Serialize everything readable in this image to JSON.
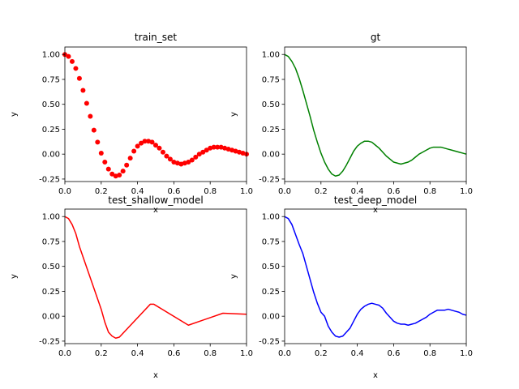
{
  "chart_data": [
    {
      "type": "scatter",
      "title": "train_set",
      "xlabel": "x",
      "ylabel": "y",
      "xlim": [
        0,
        1
      ],
      "ylim": [
        -0.275,
        1.075
      ],
      "xticks": [
        "0.0",
        "0.2",
        "0.4",
        "0.6",
        "0.8",
        "1.0"
      ],
      "yticks": [
        "-0.25",
        "0.00",
        "0.25",
        "0.50",
        "0.75",
        "1.00"
      ],
      "color": "#ff0000",
      "series": [
        {
          "x": [
            0.0,
            0.02,
            0.04,
            0.06,
            0.08,
            0.1,
            0.12,
            0.14,
            0.16,
            0.18,
            0.2,
            0.22,
            0.24,
            0.26,
            0.28,
            0.3,
            0.32,
            0.34,
            0.36,
            0.38,
            0.4,
            0.42,
            0.44,
            0.46,
            0.48,
            0.5,
            0.52,
            0.54,
            0.56,
            0.58,
            0.6,
            0.62,
            0.64,
            0.66,
            0.68,
            0.7,
            0.72,
            0.74,
            0.76,
            0.78,
            0.8,
            0.82,
            0.84,
            0.86,
            0.88,
            0.9,
            0.92,
            0.94,
            0.96,
            0.98,
            1.0
          ],
          "y": [
            1.0,
            0.98,
            0.93,
            0.86,
            0.76,
            0.64,
            0.51,
            0.38,
            0.24,
            0.12,
            0.01,
            -0.08,
            -0.15,
            -0.2,
            -0.22,
            -0.21,
            -0.17,
            -0.11,
            -0.04,
            0.03,
            0.08,
            0.11,
            0.13,
            0.13,
            0.12,
            0.09,
            0.06,
            0.02,
            -0.02,
            -0.05,
            -0.08,
            -0.09,
            -0.1,
            -0.09,
            -0.08,
            -0.06,
            -0.03,
            0.0,
            0.02,
            0.04,
            0.06,
            0.07,
            0.07,
            0.07,
            0.06,
            0.05,
            0.04,
            0.03,
            0.02,
            0.01,
            0.0
          ]
        }
      ]
    },
    {
      "type": "line",
      "title": "gt",
      "xlabel": "x",
      "ylabel": "y",
      "xlim": [
        0,
        1
      ],
      "ylim": [
        -0.275,
        1.075
      ],
      "xticks": [
        "0.0",
        "0.2",
        "0.4",
        "0.6",
        "0.8",
        "1.0"
      ],
      "yticks": [
        "-0.25",
        "0.00",
        "0.25",
        "0.50",
        "0.75",
        "1.00"
      ],
      "color": "#008000",
      "series": [
        {
          "x": [
            0.0,
            0.02,
            0.04,
            0.06,
            0.08,
            0.1,
            0.12,
            0.14,
            0.16,
            0.18,
            0.2,
            0.22,
            0.24,
            0.26,
            0.28,
            0.3,
            0.32,
            0.34,
            0.36,
            0.38,
            0.4,
            0.42,
            0.44,
            0.46,
            0.48,
            0.5,
            0.52,
            0.54,
            0.56,
            0.58,
            0.6,
            0.62,
            0.64,
            0.66,
            0.68,
            0.7,
            0.72,
            0.74,
            0.76,
            0.78,
            0.8,
            0.82,
            0.84,
            0.86,
            0.88,
            0.9,
            0.92,
            0.94,
            0.96,
            0.98,
            1.0
          ],
          "y": [
            1.0,
            0.98,
            0.93,
            0.86,
            0.76,
            0.64,
            0.51,
            0.38,
            0.24,
            0.12,
            0.01,
            -0.08,
            -0.15,
            -0.2,
            -0.22,
            -0.21,
            -0.17,
            -0.11,
            -0.04,
            0.03,
            0.08,
            0.11,
            0.13,
            0.13,
            0.12,
            0.09,
            0.06,
            0.02,
            -0.02,
            -0.05,
            -0.08,
            -0.09,
            -0.1,
            -0.09,
            -0.08,
            -0.06,
            -0.03,
            0.0,
            0.02,
            0.04,
            0.06,
            0.07,
            0.07,
            0.07,
            0.06,
            0.05,
            0.04,
            0.03,
            0.02,
            0.01,
            0.0
          ]
        }
      ]
    },
    {
      "type": "line",
      "title": "test_shallow_model",
      "xlabel": "x",
      "ylabel": "y",
      "xlim": [
        0,
        1
      ],
      "ylim": [
        -0.275,
        1.075
      ],
      "xticks": [
        "0.0",
        "0.2",
        "0.4",
        "0.6",
        "0.8",
        "1.0"
      ],
      "yticks": [
        "-0.25",
        "0.00",
        "0.25",
        "0.50",
        "0.75",
        "1.00"
      ],
      "color": "#ff0000",
      "series": [
        {
          "x": [
            0.0,
            0.02,
            0.04,
            0.06,
            0.08,
            0.2,
            0.22,
            0.24,
            0.26,
            0.28,
            0.3,
            0.47,
            0.49,
            0.68,
            0.87,
            1.0
          ],
          "y": [
            1.0,
            0.98,
            0.92,
            0.83,
            0.7,
            0.07,
            -0.06,
            -0.16,
            -0.2,
            -0.22,
            -0.21,
            0.12,
            0.12,
            -0.09,
            0.03,
            0.02
          ]
        }
      ]
    },
    {
      "type": "line",
      "title": "test_deep_model",
      "xlabel": "x",
      "ylabel": "y",
      "xlim": [
        0,
        1
      ],
      "ylim": [
        -0.275,
        1.075
      ],
      "xticks": [
        "0.0",
        "0.2",
        "0.4",
        "0.6",
        "0.8",
        "1.0"
      ],
      "yticks": [
        "-0.25",
        "0.00",
        "0.25",
        "0.50",
        "0.75",
        "1.00"
      ],
      "color": "#0000ff",
      "series": [
        {
          "x": [
            0.0,
            0.02,
            0.04,
            0.06,
            0.08,
            0.1,
            0.12,
            0.14,
            0.16,
            0.18,
            0.2,
            0.22,
            0.24,
            0.26,
            0.28,
            0.3,
            0.32,
            0.34,
            0.36,
            0.38,
            0.4,
            0.42,
            0.44,
            0.46,
            0.48,
            0.5,
            0.52,
            0.54,
            0.56,
            0.58,
            0.6,
            0.62,
            0.64,
            0.66,
            0.68,
            0.7,
            0.72,
            0.74,
            0.76,
            0.78,
            0.8,
            0.82,
            0.84,
            0.86,
            0.88,
            0.9,
            0.92,
            0.94,
            0.96,
            0.98,
            1.0
          ],
          "y": [
            1.0,
            0.98,
            0.92,
            0.82,
            0.72,
            0.63,
            0.5,
            0.37,
            0.24,
            0.13,
            0.04,
            0.0,
            -0.1,
            -0.16,
            -0.2,
            -0.21,
            -0.2,
            -0.16,
            -0.12,
            -0.05,
            0.02,
            0.07,
            0.1,
            0.12,
            0.13,
            0.12,
            0.11,
            0.08,
            0.03,
            -0.01,
            -0.05,
            -0.07,
            -0.08,
            -0.08,
            -0.09,
            -0.08,
            -0.07,
            -0.05,
            -0.03,
            -0.01,
            0.02,
            0.04,
            0.06,
            0.06,
            0.06,
            0.07,
            0.06,
            0.05,
            0.04,
            0.02,
            0.01
          ]
        }
      ]
    }
  ]
}
